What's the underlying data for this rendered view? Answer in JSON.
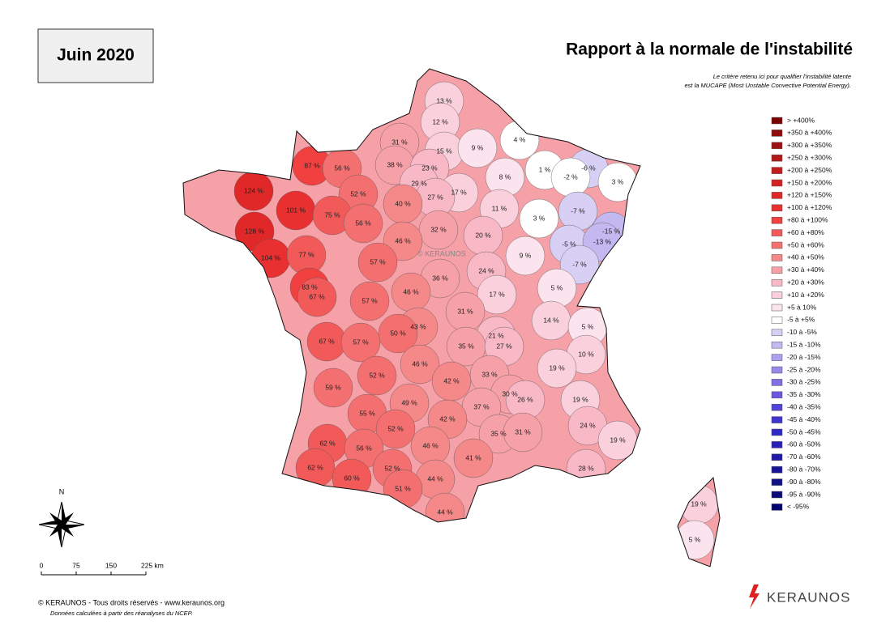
{
  "header": {
    "month": "Juin 2020",
    "title": "Rapport à la normale de l'instabilité",
    "subtitle": [
      "Le critère retenu ici pour qualifier l'instabilité latente",
      "est la MUCAPE (Most Unstable Convective Potential Energy)."
    ]
  },
  "watermark": "© KERAUNOS",
  "legend": [
    {
      "label": "> +400%",
      "color": "#7a0000"
    },
    {
      "label": "+350 à +400%",
      "color": "#8f0a0a"
    },
    {
      "label": "+300 à +350%",
      "color": "#a01010"
    },
    {
      "label": "+250 à +300%",
      "color": "#b31717"
    },
    {
      "label": "+200 à +250%",
      "color": "#c41c1c"
    },
    {
      "label": "+150 à +200%",
      "color": "#d42222"
    },
    {
      "label": "+120 à +150%",
      "color": "#e02828"
    },
    {
      "label": "+100 à +120%",
      "color": "#e83030"
    },
    {
      "label": "+80 à +100%",
      "color": "#f04040"
    },
    {
      "label": "+60 à +80%",
      "color": "#f25a5a"
    },
    {
      "label": "+50 à +60%",
      "color": "#f47070"
    },
    {
      "label": "+40 à +50%",
      "color": "#f58888"
    },
    {
      "label": "+30 à +40%",
      "color": "#f6a0a8"
    },
    {
      "label": "+20 à +30%",
      "color": "#f8b8c6"
    },
    {
      "label": "+10 à +20%",
      "color": "#fad0dc"
    },
    {
      "label": "+5 à 10%",
      "color": "#fce4ee"
    },
    {
      "label": "-5 à +5%",
      "color": "#ffffff"
    },
    {
      "label": "-10 à -5%",
      "color": "#d8d0f4"
    },
    {
      "label": "-15 à -10%",
      "color": "#c4b8f0"
    },
    {
      "label": "-20 à -15%",
      "color": "#aea0ec"
    },
    {
      "label": "-25 à -20%",
      "color": "#9888e8"
    },
    {
      "label": "-30 à -25%",
      "color": "#8070e4"
    },
    {
      "label": "-35 à -30%",
      "color": "#6858e0"
    },
    {
      "label": "-40 à -35%",
      "color": "#5244d8"
    },
    {
      "label": "-45 à -40%",
      "color": "#4034d0"
    },
    {
      "label": "-50 à -45%",
      "color": "#3028c4"
    },
    {
      "label": "-60 à -50%",
      "color": "#2820b8"
    },
    {
      "label": "-70 à -60%",
      "color": "#2018a8"
    },
    {
      "label": "-80 à -70%",
      "color": "#181498"
    },
    {
      "label": "-90 à -80%",
      "color": "#101088"
    },
    {
      "label": "-95 à -90%",
      "color": "#0a0a78"
    },
    {
      "label": "< -95%",
      "color": "#000070"
    }
  ],
  "departments": [
    {
      "label": "13 %",
      "color": "#fad0dc"
    },
    {
      "label": "12 %",
      "color": "#fad0dc"
    },
    {
      "label": "31 %",
      "color": "#f6a0a8"
    },
    {
      "label": "15 %",
      "color": "#fad0dc"
    },
    {
      "label": "9 %",
      "color": "#fce4ee"
    },
    {
      "label": "4 %",
      "color": "#ffffff"
    },
    {
      "label": "38 %",
      "color": "#f6a0a8"
    },
    {
      "label": "87 %",
      "color": "#f04040"
    },
    {
      "label": "56 %",
      "color": "#f47070"
    },
    {
      "label": "1 %",
      "color": "#ffffff"
    },
    {
      "label": "-6 %",
      "color": "#d8d0f4"
    },
    {
      "label": "23 %",
      "color": "#f8b8c6"
    },
    {
      "label": "8 %",
      "color": "#fce4ee"
    },
    {
      "label": "-2 %",
      "color": "#ffffff"
    },
    {
      "label": "3 %",
      "color": "#ffffff"
    },
    {
      "label": "124 %",
      "color": "#e02828"
    },
    {
      "label": "29 %",
      "color": "#f8b8c6"
    },
    {
      "label": "17 %",
      "color": "#fad0dc"
    },
    {
      "label": "27 %",
      "color": "#f8b8c6"
    },
    {
      "label": "52 %",
      "color": "#f47070"
    },
    {
      "label": "40 %",
      "color": "#f58888"
    },
    {
      "label": "101 %",
      "color": "#e83030"
    },
    {
      "label": "75 %",
      "color": "#f25a5a"
    },
    {
      "label": "11 %",
      "color": "#fad0dc"
    },
    {
      "label": "-7 %",
      "color": "#d8d0f4"
    },
    {
      "label": "3 %",
      "color": "#ffffff"
    },
    {
      "label": "56 %",
      "color": "#f47070"
    },
    {
      "label": "128 %",
      "color": "#e02828"
    },
    {
      "label": "32 %",
      "color": "#f6a0a8"
    },
    {
      "label": "20 %",
      "color": "#f8b8c6"
    },
    {
      "label": "-15 %",
      "color": "#c4b8f0"
    },
    {
      "label": "46 %",
      "color": "#f58888"
    },
    {
      "label": "-5 %",
      "color": "#d8d0f4"
    },
    {
      "label": "-13 %",
      "color": "#c4b8f0"
    },
    {
      "label": "104 %",
      "color": "#e83030"
    },
    {
      "label": "77 %",
      "color": "#f25a5a"
    },
    {
      "label": "57 %",
      "color": "#f47070"
    },
    {
      "label": "9 %",
      "color": "#fce4ee"
    },
    {
      "label": "-7 %",
      "color": "#d8d0f4"
    },
    {
      "label": "24 %",
      "color": "#f8b8c6"
    },
    {
      "label": "36 %",
      "color": "#f6a0a8"
    },
    {
      "label": "83 %",
      "color": "#f04040"
    },
    {
      "label": "5 %",
      "color": "#fce4ee"
    },
    {
      "label": "46 %",
      "color": "#f58888"
    },
    {
      "label": "17 %",
      "color": "#fad0dc"
    },
    {
      "label": "67 %",
      "color": "#f25a5a"
    },
    {
      "label": "57 %",
      "color": "#f47070"
    },
    {
      "label": "31 %",
      "color": "#f6a0a8"
    },
    {
      "label": "14 %",
      "color": "#fad0dc"
    },
    {
      "label": "43 %",
      "color": "#f58888"
    },
    {
      "label": "50 %",
      "color": "#f47070"
    },
    {
      "label": "5 %",
      "color": "#fce4ee"
    },
    {
      "label": "21 %",
      "color": "#f8b8c6"
    },
    {
      "label": "67 %",
      "color": "#f25a5a"
    },
    {
      "label": "57 %",
      "color": "#f47070"
    },
    {
      "label": "35 %",
      "color": "#f6a0a8"
    },
    {
      "label": "27 %",
      "color": "#f8b8c6"
    },
    {
      "label": "10 %",
      "color": "#fad0dc"
    },
    {
      "label": "46 %",
      "color": "#f58888"
    },
    {
      "label": "19 %",
      "color": "#fad0dc"
    },
    {
      "label": "52 %",
      "color": "#f47070"
    },
    {
      "label": "33 %",
      "color": "#f6a0a8"
    },
    {
      "label": "42 %",
      "color": "#f58888"
    },
    {
      "label": "59 %",
      "color": "#f47070"
    },
    {
      "label": "30 %",
      "color": "#f6a0a8"
    },
    {
      "label": "26 %",
      "color": "#f8b8c6"
    },
    {
      "label": "19 %",
      "color": "#fad0dc"
    },
    {
      "label": "49 %",
      "color": "#f58888"
    },
    {
      "label": "37 %",
      "color": "#f6a0a8"
    },
    {
      "label": "55 %",
      "color": "#f47070"
    },
    {
      "label": "42 %",
      "color": "#f58888"
    },
    {
      "label": "52 %",
      "color": "#f47070"
    },
    {
      "label": "24 %",
      "color": "#f8b8c6"
    },
    {
      "label": "35 %",
      "color": "#f6a0a8"
    },
    {
      "label": "31 %",
      "color": "#f6a0a8"
    },
    {
      "label": "19 %",
      "color": "#fad0dc"
    },
    {
      "label": "62 %",
      "color": "#f25a5a"
    },
    {
      "label": "46 %",
      "color": "#f58888"
    },
    {
      "label": "56 %",
      "color": "#f47070"
    },
    {
      "label": "41 %",
      "color": "#f58888"
    },
    {
      "label": "62 %",
      "color": "#f25a5a"
    },
    {
      "label": "52 %",
      "color": "#f47070"
    },
    {
      "label": "28 %",
      "color": "#f8b8c6"
    },
    {
      "label": "60 %",
      "color": "#f25a5a"
    },
    {
      "label": "44 %",
      "color": "#f58888"
    },
    {
      "label": "51 %",
      "color": "#f47070"
    },
    {
      "label": "44 %",
      "color": "#f58888"
    },
    {
      "label": "19 %",
      "color": "#fad0dc"
    },
    {
      "label": "5 %",
      "color": "#fce4ee"
    }
  ],
  "compass": "N",
  "scale": [
    "0",
    "75",
    "150",
    "225 km"
  ],
  "footer": [
    "© KERAUNOS - Tous droits réservés - www.keraunos.org",
    "Données calculées à partir des réanalyses du NCEP."
  ],
  "logo": "KERAUNOS"
}
